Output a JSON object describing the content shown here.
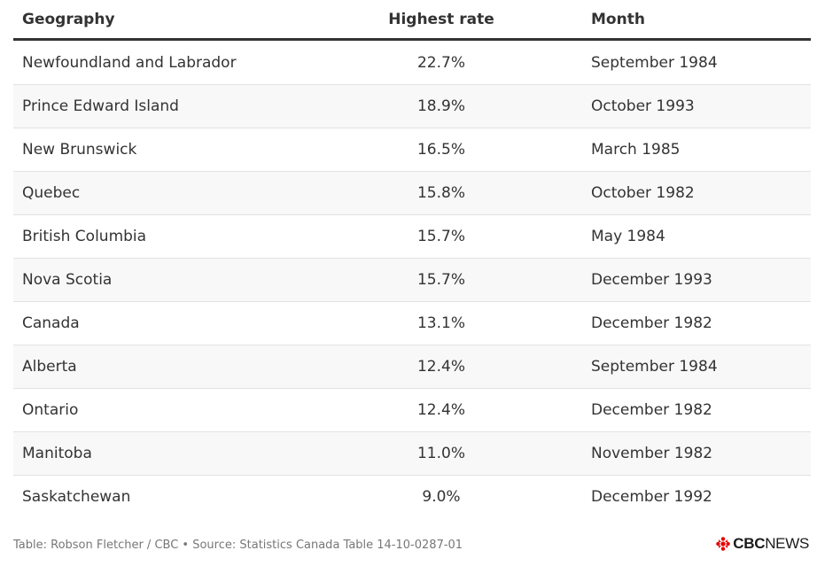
{
  "chart_data": {
    "type": "table",
    "columns": [
      "Geography",
      "Highest rate",
      "Month"
    ],
    "rows": [
      {
        "geography": "Newfoundland and Labrador",
        "rate": "22.7%",
        "month": "September 1984"
      },
      {
        "geography": "Prince Edward Island",
        "rate": "18.9%",
        "month": "October 1993"
      },
      {
        "geography": "New Brunswick",
        "rate": "16.5%",
        "month": "March 1985"
      },
      {
        "geography": "Quebec",
        "rate": "15.8%",
        "month": "October 1982"
      },
      {
        "geography": "British Columbia",
        "rate": "15.7%",
        "month": "May 1984"
      },
      {
        "geography": "Nova Scotia",
        "rate": "15.7%",
        "month": "December 1993"
      },
      {
        "geography": "Canada",
        "rate": "13.1%",
        "month": "December 1982"
      },
      {
        "geography": "Alberta",
        "rate": "12.4%",
        "month": "September 1984"
      },
      {
        "geography": "Ontario",
        "rate": "12.4%",
        "month": "December 1982"
      },
      {
        "geography": "Manitoba",
        "rate": "11.0%",
        "month": "November 1982"
      },
      {
        "geography": "Saskatchewan",
        "rate": "9.0%",
        "month": "December 1992"
      }
    ]
  },
  "footer": {
    "credit": "Table: Robson Fletcher / CBC • Source: Statistics Canada Table 14-10-0287-01"
  },
  "logo": {
    "brand": "CBC",
    "product": "NEWS",
    "color": "#e60505"
  }
}
